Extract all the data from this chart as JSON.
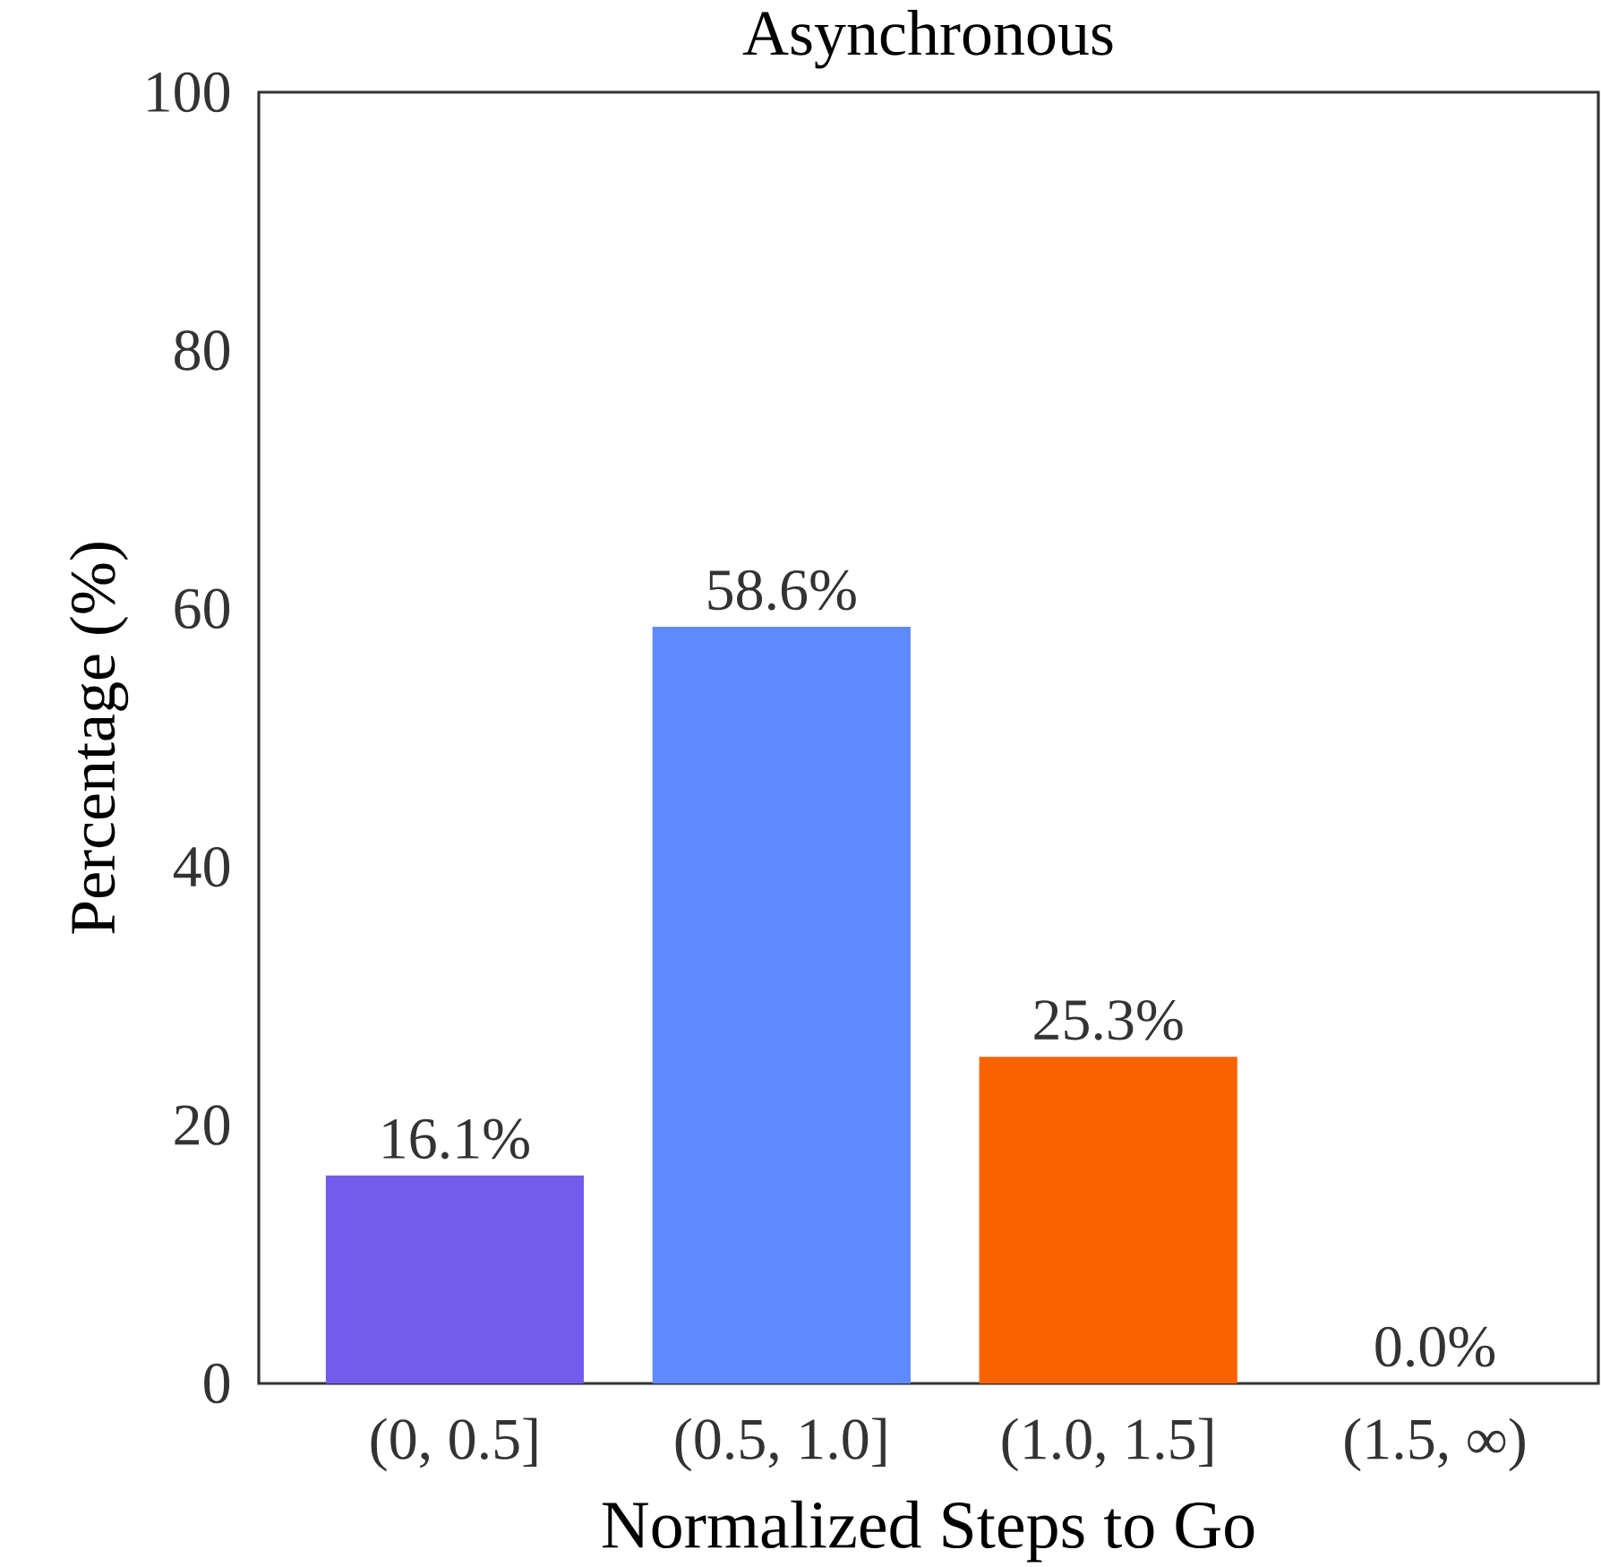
{
  "chart_data": {
    "type": "bar",
    "title": "Asynchronous",
    "xlabel": "Normalized Steps to Go",
    "ylabel": "Percentage (%)",
    "categories": [
      "(0, 0.5]",
      "(0.5, 1.0]",
      "(1.0, 1.5]",
      "(1.5, ∞)"
    ],
    "values": [
      16.1,
      58.6,
      25.3,
      0.0
    ],
    "value_labels": [
      "16.1%",
      "58.6%",
      "25.3%",
      "0.0%"
    ],
    "colors": [
      "#735cec",
      "#5f8afe",
      "#fa6200",
      "#fdb000"
    ],
    "ylim": [
      0,
      100
    ],
    "yticks": [
      0,
      20,
      40,
      60,
      80,
      100
    ],
    "grid": false
  }
}
